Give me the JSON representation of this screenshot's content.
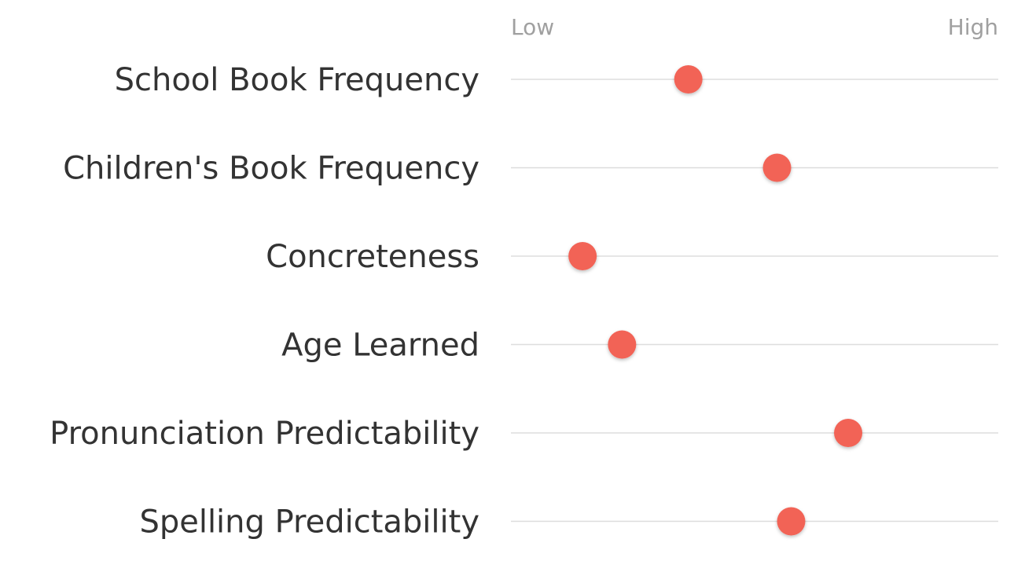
{
  "chart_data": {
    "type": "scatter",
    "scale": {
      "low_label": "Low",
      "high_label": "High",
      "xlim": [
        0,
        1
      ]
    },
    "categories": [
      "School Book Frequency",
      "Children's Book Frequency",
      "Concreteness",
      "Age Learned",
      "Pronunciation Predictability",
      "Spelling Predictability"
    ],
    "values": [
      0.364,
      0.546,
      0.147,
      0.228,
      0.692,
      0.575
    ],
    "colors": {
      "point": "#F26457",
      "track": "#dddddd",
      "label": "#333333",
      "scale_label": "#a0a0a0"
    },
    "grid": false,
    "legend": "none"
  }
}
